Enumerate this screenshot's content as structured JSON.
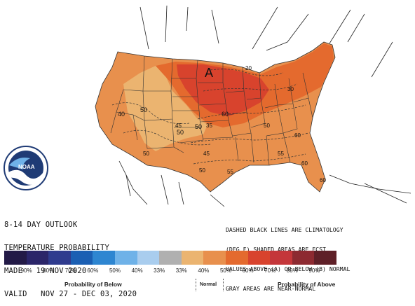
{
  "map": {
    "letter_A": "A",
    "contour_labels": [
      "40",
      "50",
      "60",
      "50",
      "20",
      "30",
      "35",
      "50",
      "50",
      "45",
      "50",
      "55",
      "60",
      "55",
      "60",
      "60",
      "45",
      "50"
    ]
  },
  "title_lines": [
    "8-14 DAY OUTLOOK",
    "TEMPERATURE PROBABILITY",
    "MADE   19 NOV 2020",
    "VALID   NOV 27 - DEC 03, 2020"
  ],
  "note_lines": [
    "DASHED BLACK LINES ARE CLIMATOLOGY",
    "(DEG F) SHADED AREAS ARE FCST",
    "VALUES ABOVE (A) OR BELOW (B) NORMAL",
    "GRAY AREAS ARE NEAR-NORMAL"
  ],
  "legend": {
    "swatches": [
      {
        "label": "90%",
        "color": "#231a47"
      },
      {
        "label": "80%",
        "color": "#2b2569"
      },
      {
        "label": "70%",
        "color": "#2f3b8e"
      },
      {
        "label": "60%",
        "color": "#1b5fb3"
      },
      {
        "label": "50%",
        "color": "#2e86d1"
      },
      {
        "label": "40%",
        "color": "#6fb2e8"
      },
      {
        "label": "33%",
        "color": "#a9cdee"
      },
      {
        "label": "33%",
        "color": "#b0b0b0"
      },
      {
        "label": "40%",
        "color": "#ebb470"
      },
      {
        "label": "50%",
        "color": "#e8904d"
      },
      {
        "label": "60%",
        "color": "#e46a2e"
      },
      {
        "label": "70%",
        "color": "#d8432d"
      },
      {
        "label": "80%",
        "color": "#c4363a"
      },
      {
        "label": "90%",
        "color": "#8d2a31"
      },
      {
        "label": "",
        "color": "#5e1f27"
      }
    ],
    "caption_below": "Probability of Below",
    "caption_normal": "Normal",
    "caption_above": "Probability of Above"
  },
  "logo": {
    "text": "NOAA"
  }
}
